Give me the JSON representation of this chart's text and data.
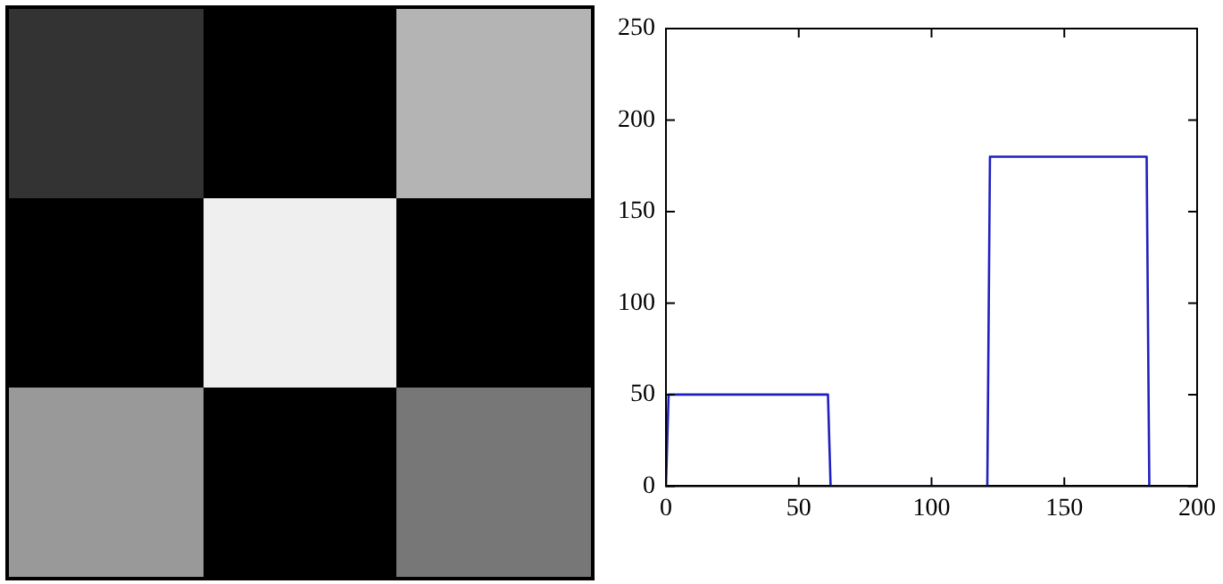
{
  "chart_data": {
    "type": "line",
    "x": [
      0,
      1,
      61,
      62,
      121,
      122,
      181,
      182
    ],
    "series": [
      {
        "color": "#2020c0",
        "values": [
          0,
          50,
          50,
          0,
          0,
          180,
          180,
          0
        ]
      }
    ],
    "xlim": [
      0,
      200
    ],
    "xticks": [
      0,
      50,
      100,
      150,
      200
    ],
    "ylim": [
      0,
      250
    ],
    "yticks": [
      0,
      50,
      100,
      150,
      200,
      250
    ],
    "grid": false,
    "legend": false,
    "marker": "none",
    "line_style": "solid"
  }
}
